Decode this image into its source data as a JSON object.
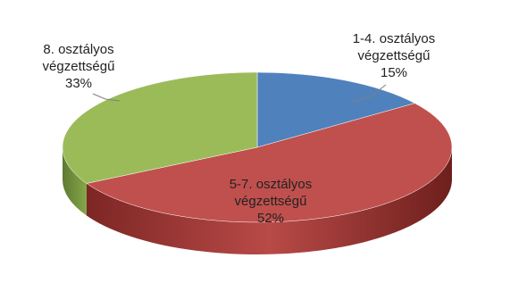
{
  "chart_data": {
    "type": "pie",
    "style": "3d",
    "slices": [
      {
        "label_lines": [
          "1-4. osztályos",
          "végzettségű",
          "15%"
        ],
        "value": 15,
        "color": "#4f81bd"
      },
      {
        "label_lines": [
          "5-7. osztályos",
          "végzettségű",
          "52%"
        ],
        "value": 52,
        "color": "#c0504d"
      },
      {
        "label_lines": [
          "8. osztályos",
          "végzettségű",
          "33%"
        ],
        "value": 33,
        "color": "#9bbb59"
      }
    ],
    "start_angle_deg": 0,
    "direction": "clockwise",
    "legend": "none",
    "title": ""
  }
}
